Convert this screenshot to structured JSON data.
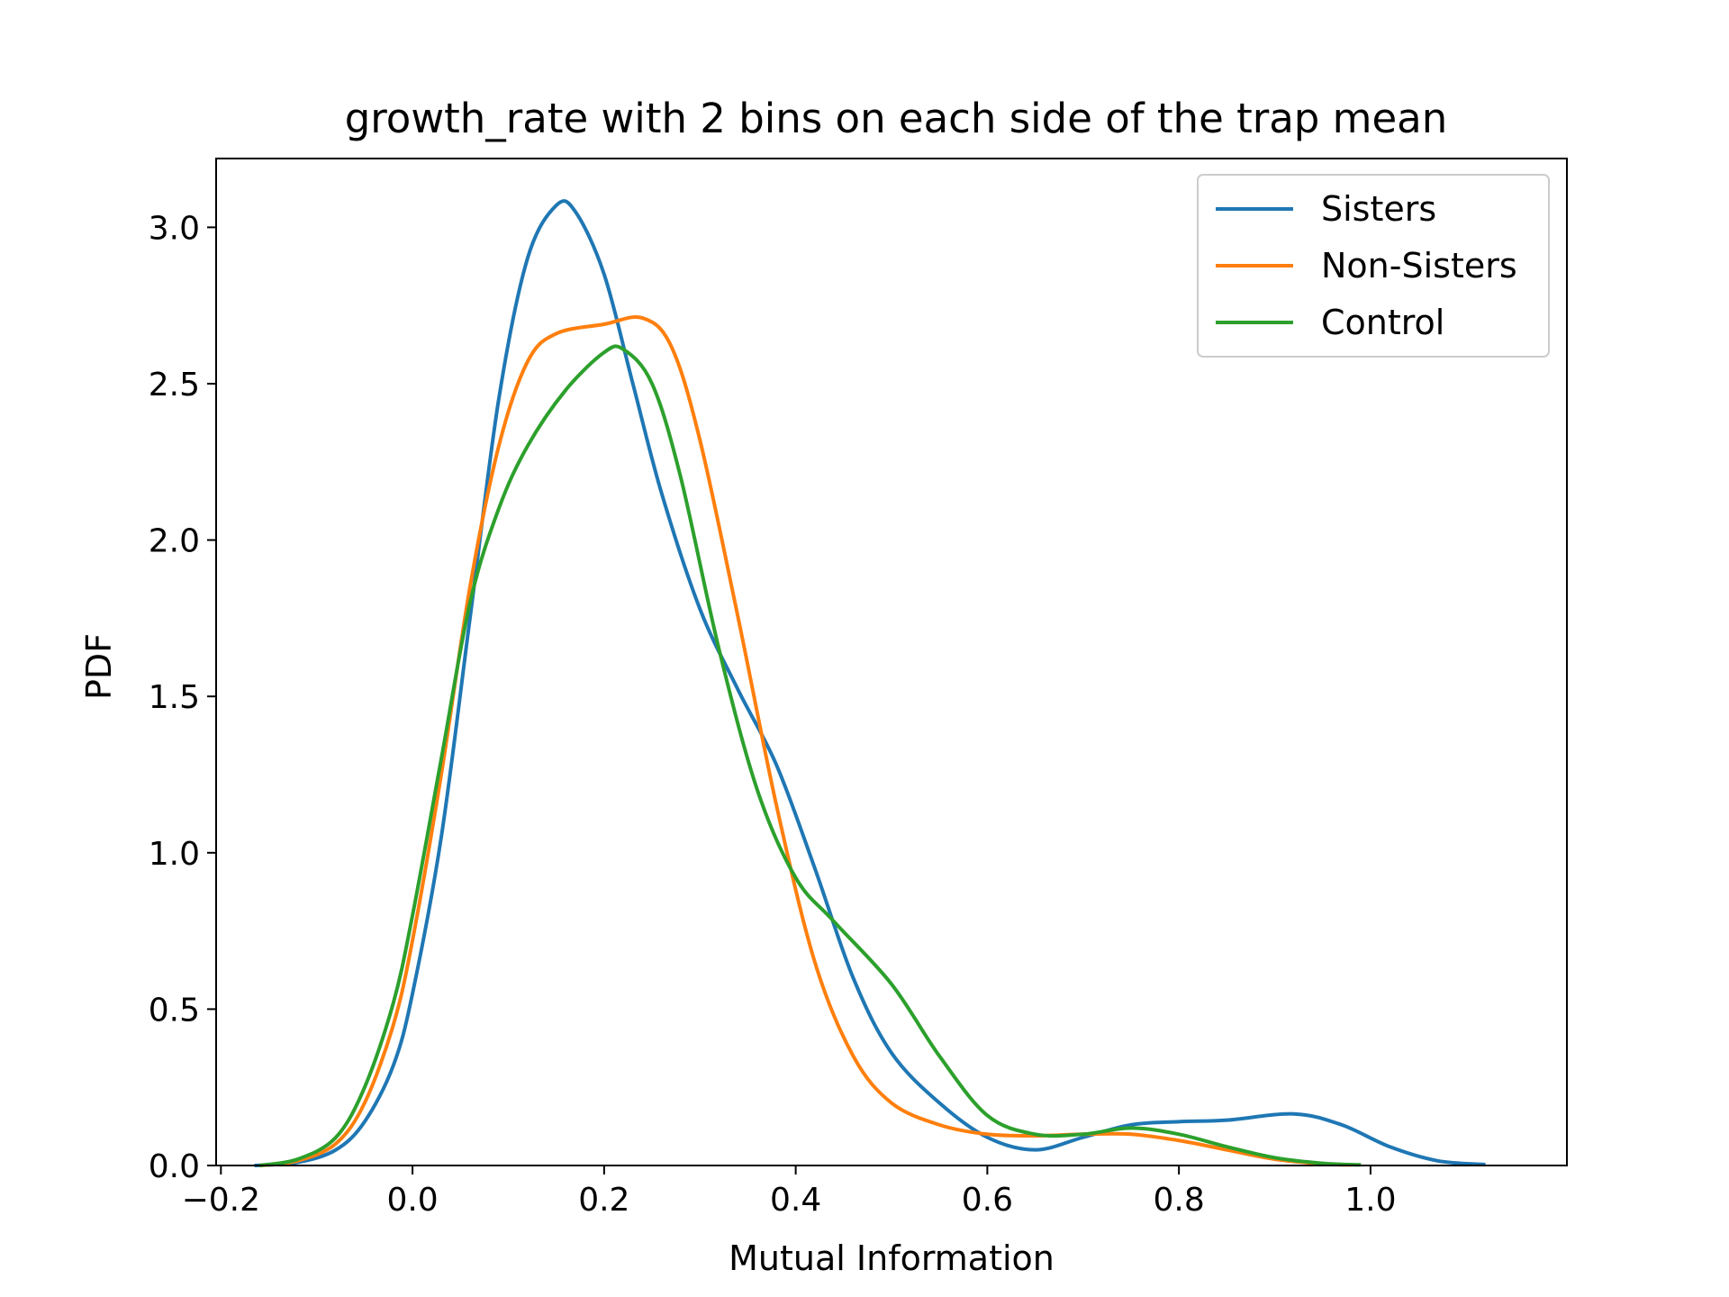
{
  "chart_data": {
    "type": "line",
    "title": "growth_rate with 2 bins on each side of the trap mean",
    "xlabel": "Mutual Information",
    "ylabel": "PDF",
    "xlim": [
      -0.205,
      1.205
    ],
    "ylim": [
      0.0,
      3.22
    ],
    "xticks": [
      -0.2,
      0.0,
      0.2,
      0.4,
      0.6,
      0.8,
      1.0
    ],
    "xtick_labels": [
      "−0.2",
      "0.0",
      "0.2",
      "0.4",
      "0.6",
      "0.8",
      "1.0"
    ],
    "yticks": [
      0.0,
      0.5,
      1.0,
      1.5,
      2.0,
      2.5,
      3.0
    ],
    "ytick_labels": [
      "0.0",
      "0.5",
      "1.0",
      "1.5",
      "2.0",
      "2.5",
      "3.0"
    ],
    "grid": false,
    "legend_position": "top-right",
    "series": [
      {
        "name": "Sisters",
        "color": "#1f77b4",
        "points": [
          [
            -0.165,
            0.0
          ],
          [
            -0.12,
            0.01
          ],
          [
            -0.08,
            0.05
          ],
          [
            -0.05,
            0.14
          ],
          [
            -0.02,
            0.32
          ],
          [
            0.0,
            0.55
          ],
          [
            0.03,
            1.05
          ],
          [
            0.06,
            1.75
          ],
          [
            0.09,
            2.45
          ],
          [
            0.12,
            2.9
          ],
          [
            0.15,
            3.07
          ],
          [
            0.17,
            3.05
          ],
          [
            0.2,
            2.85
          ],
          [
            0.23,
            2.5
          ],
          [
            0.26,
            2.15
          ],
          [
            0.3,
            1.78
          ],
          [
            0.34,
            1.52
          ],
          [
            0.38,
            1.28
          ],
          [
            0.42,
            0.95
          ],
          [
            0.46,
            0.6
          ],
          [
            0.5,
            0.36
          ],
          [
            0.55,
            0.2
          ],
          [
            0.6,
            0.09
          ],
          [
            0.65,
            0.05
          ],
          [
            0.7,
            0.09
          ],
          [
            0.75,
            0.13
          ],
          [
            0.8,
            0.14
          ],
          [
            0.85,
            0.145
          ],
          [
            0.92,
            0.165
          ],
          [
            0.97,
            0.13
          ],
          [
            1.02,
            0.06
          ],
          [
            1.07,
            0.015
          ],
          [
            1.12,
            0.003
          ]
        ]
      },
      {
        "name": "Non-Sisters",
        "color": "#ff7f0e",
        "points": [
          [
            -0.16,
            0.0
          ],
          [
            -0.12,
            0.015
          ],
          [
            -0.08,
            0.07
          ],
          [
            -0.05,
            0.2
          ],
          [
            -0.02,
            0.45
          ],
          [
            0.0,
            0.72
          ],
          [
            0.03,
            1.25
          ],
          [
            0.06,
            1.85
          ],
          [
            0.09,
            2.3
          ],
          [
            0.12,
            2.57
          ],
          [
            0.15,
            2.66
          ],
          [
            0.2,
            2.69
          ],
          [
            0.24,
            2.71
          ],
          [
            0.27,
            2.62
          ],
          [
            0.3,
            2.32
          ],
          [
            0.34,
            1.75
          ],
          [
            0.38,
            1.15
          ],
          [
            0.42,
            0.65
          ],
          [
            0.46,
            0.35
          ],
          [
            0.5,
            0.2
          ],
          [
            0.55,
            0.13
          ],
          [
            0.6,
            0.1
          ],
          [
            0.65,
            0.095
          ],
          [
            0.7,
            0.1
          ],
          [
            0.75,
            0.1
          ],
          [
            0.8,
            0.08
          ],
          [
            0.85,
            0.05
          ],
          [
            0.9,
            0.02
          ],
          [
            0.95,
            0.005
          ],
          [
            0.98,
            0.002
          ]
        ]
      },
      {
        "name": "Control",
        "color": "#2ca02c",
        "points": [
          [
            -0.16,
            0.0
          ],
          [
            -0.12,
            0.02
          ],
          [
            -0.08,
            0.09
          ],
          [
            -0.05,
            0.25
          ],
          [
            -0.02,
            0.52
          ],
          [
            0.0,
            0.8
          ],
          [
            0.03,
            1.3
          ],
          [
            0.06,
            1.8
          ],
          [
            0.09,
            2.1
          ],
          [
            0.12,
            2.3
          ],
          [
            0.16,
            2.48
          ],
          [
            0.2,
            2.6
          ],
          [
            0.22,
            2.61
          ],
          [
            0.25,
            2.5
          ],
          [
            0.28,
            2.2
          ],
          [
            0.32,
            1.65
          ],
          [
            0.36,
            1.2
          ],
          [
            0.4,
            0.92
          ],
          [
            0.44,
            0.78
          ],
          [
            0.5,
            0.58
          ],
          [
            0.55,
            0.35
          ],
          [
            0.6,
            0.16
          ],
          [
            0.65,
            0.1
          ],
          [
            0.7,
            0.1
          ],
          [
            0.75,
            0.12
          ],
          [
            0.8,
            0.1
          ],
          [
            0.85,
            0.06
          ],
          [
            0.9,
            0.025
          ],
          [
            0.95,
            0.007
          ],
          [
            0.99,
            0.002
          ]
        ]
      }
    ]
  }
}
